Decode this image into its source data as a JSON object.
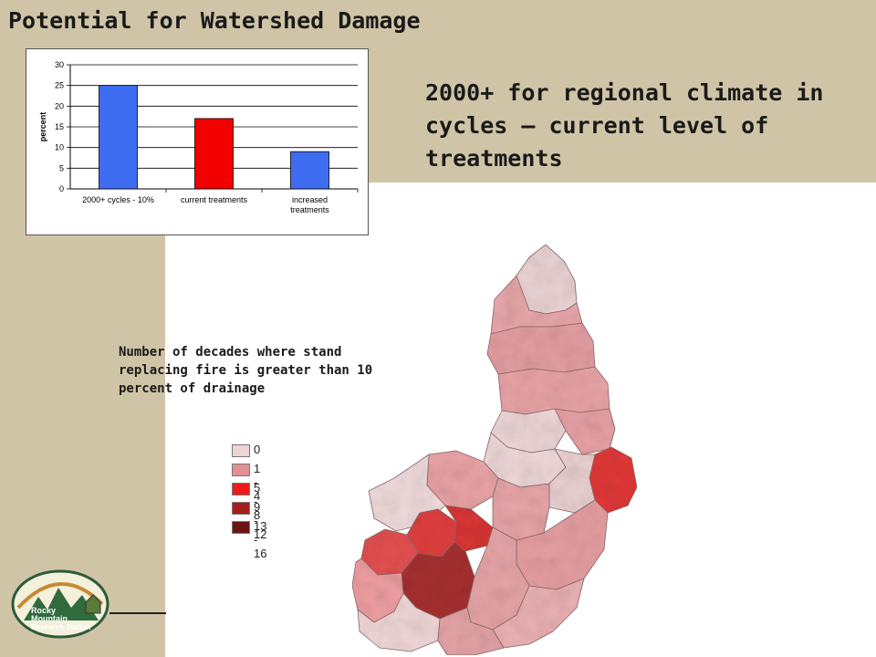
{
  "slide": {
    "title": "Potential for Watershed Damage",
    "subtitle": "2000+ for regional climate in cycles – current level of treatments",
    "legend_title": "Number of decades where stand replacing fire is greater than 10 percent of drainage"
  },
  "chart_data": {
    "type": "bar",
    "categories": [
      "2000+ cycles - 10%",
      "current treatments",
      "increased treatments"
    ],
    "values": [
      25,
      17,
      9
    ],
    "bar_colors": [
      "#3f6df2",
      "#f20000",
      "#3f6df2"
    ],
    "xlabel": "",
    "ylabel": "percent",
    "ylim": [
      0,
      30
    ],
    "yticks": [
      "30",
      "25",
      "20",
      "15",
      "10",
      "5",
      "0"
    ],
    "grid": true
  },
  "legend": {
    "items": [
      {
        "label": "0",
        "color": "#eed4d4"
      },
      {
        "label": "1 - 4",
        "color": "#e48f94"
      },
      {
        "label": "5 - 8",
        "color": "#ee1a1a"
      },
      {
        "label": "9 - 12",
        "color": "#a51d1d"
      },
      {
        "label": "13 - 16",
        "color": "#6a1515"
      }
    ]
  },
  "logo": {
    "line1": "Rocky",
    "line2": "Mountain",
    "line3": "Research Station"
  },
  "map": {
    "icon": "watershed-map"
  }
}
